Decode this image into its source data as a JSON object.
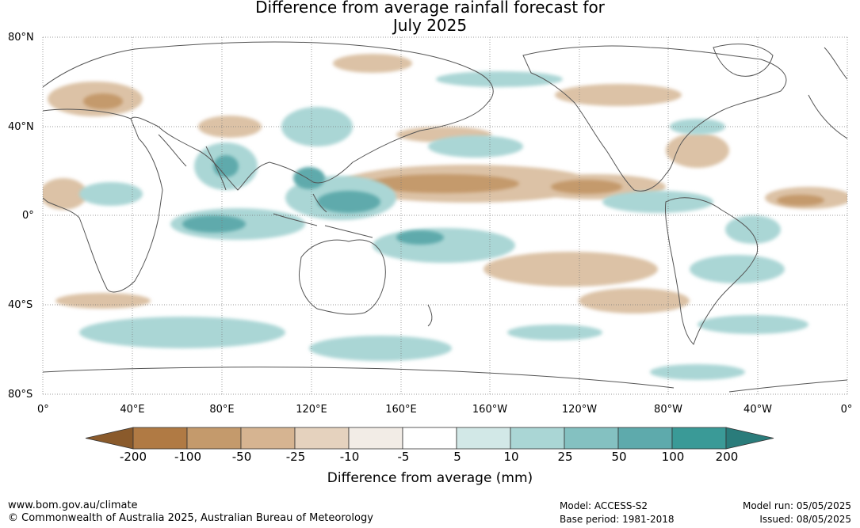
{
  "title": {
    "line1": "Difference from average rainfall forecast for",
    "line2": "July 2025"
  },
  "axes": {
    "lat_labels": [
      "80°N",
      "40°N",
      "0°",
      "40°S",
      "80°S"
    ],
    "lon_labels": [
      "0°",
      "40°E",
      "80°E",
      "120°E",
      "160°E",
      "160°W",
      "120°W",
      "80°W",
      "40°W",
      "0°"
    ]
  },
  "legend": {
    "tick_labels": [
      "-200",
      "-100",
      "-50",
      "-25",
      "-10",
      "-5",
      "5",
      "10",
      "25",
      "50",
      "100",
      "200"
    ],
    "colors": [
      "#8a5a2b",
      "#b07a44",
      "#c49a6c",
      "#d6b491",
      "#e5d2be",
      "#f2ece6",
      "#ffffff",
      "#d2e8e7",
      "#aad6d5",
      "#84c1c1",
      "#5eaaac",
      "#3a9a97",
      "#2a7c7b"
    ],
    "units_label": "Difference from average (mm)"
  },
  "footer": {
    "website": "www.bom.gov.au/climate",
    "copyright": "© Commonwealth of Australia 2025, Australian Bureau of Meteorology",
    "model": "Model: ACCESS-S2",
    "base_period": "Base period: 1981-2018",
    "model_run": "Model run: 05/05/2025",
    "issued": "Issued: 08/05/2025"
  }
}
